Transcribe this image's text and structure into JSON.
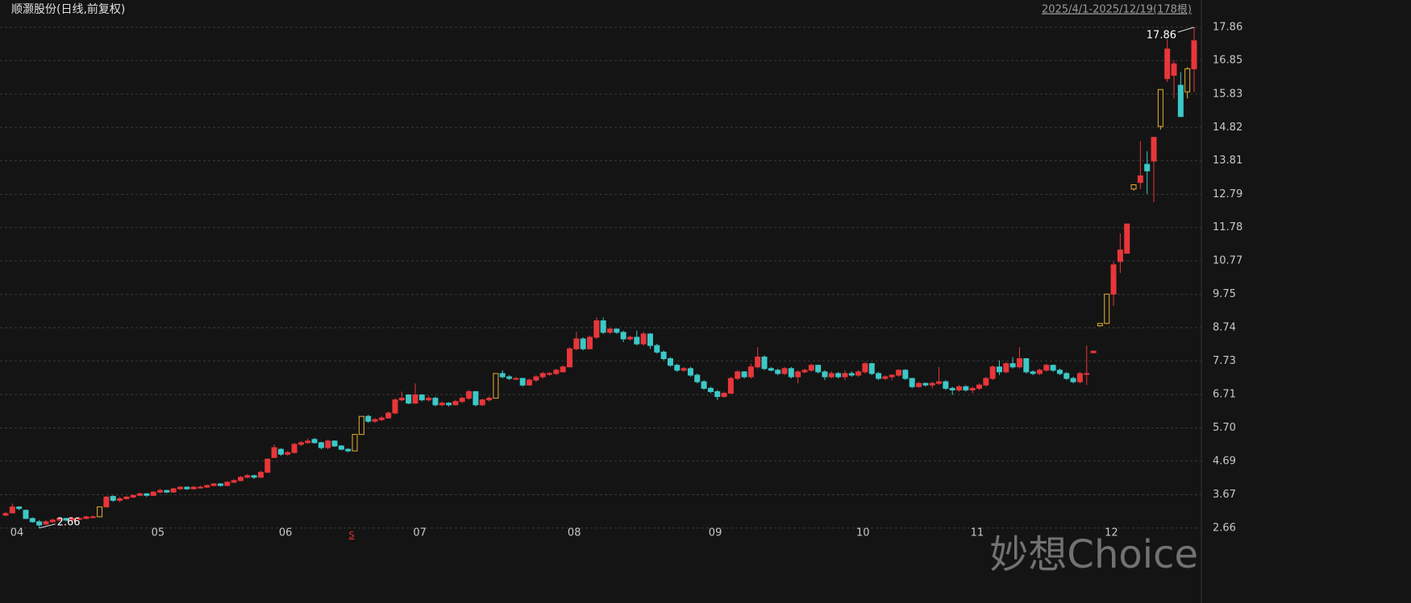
{
  "chart_data": {
    "type": "candlestick",
    "title": "顺灏股份(日线,前复权)",
    "range_label": "2025/4/1-2025/12/19(178根)",
    "watermark": "妙想Choice",
    "event_marker": "S",
    "event_index": 52,
    "up_color": "#e8363a",
    "down_color": "#3cc8c8",
    "limit_color": "#e8b030",
    "grid": true,
    "ylim": [
      2.29,
      18.15
    ],
    "yticks": [
      17.86,
      16.85,
      15.83,
      14.82,
      13.81,
      12.79,
      11.78,
      10.77,
      9.75,
      8.74,
      7.73,
      6.71,
      {
        "value": 5.7,
        "label": "5.70"
      },
      4.69,
      3.67,
      2.66
    ],
    "categories": [
      "04",
      null,
      null,
      null,
      null,
      null,
      null,
      null,
      null,
      null,
      null,
      null,
      null,
      null,
      null,
      null,
      null,
      null,
      null,
      null,
      null,
      "05",
      null,
      null,
      null,
      null,
      null,
      null,
      null,
      null,
      null,
      null,
      null,
      null,
      null,
      null,
      null,
      null,
      null,
      null,
      "06",
      null,
      null,
      null,
      null,
      null,
      null,
      null,
      null,
      null,
      null,
      null,
      null,
      null,
      null,
      null,
      null,
      null,
      null,
      null,
      "07",
      null,
      null,
      null,
      null,
      null,
      null,
      null,
      null,
      null,
      null,
      null,
      null,
      null,
      null,
      null,
      null,
      null,
      null,
      null,
      null,
      null,
      null,
      "08",
      null,
      null,
      null,
      null,
      null,
      null,
      null,
      null,
      null,
      null,
      null,
      null,
      null,
      null,
      null,
      null,
      null,
      null,
      null,
      null,
      "09",
      null,
      null,
      null,
      null,
      null,
      null,
      null,
      null,
      null,
      null,
      null,
      null,
      null,
      null,
      null,
      null,
      null,
      null,
      null,
      null,
      null,
      "10",
      null,
      null,
      null,
      null,
      null,
      null,
      null,
      null,
      null,
      null,
      null,
      null,
      null,
      null,
      null,
      null,
      "11",
      null,
      null,
      null,
      null,
      null,
      null,
      null,
      null,
      null,
      null,
      null,
      null,
      null,
      null,
      null,
      null,
      null,
      null,
      null,
      "12",
      null,
      null,
      null,
      null,
      null,
      null,
      null,
      null,
      null,
      null,
      null,
      null,
      null,
      null
    ],
    "candles": [
      [
        3.05,
        3.15,
        3.02,
        3.1
      ],
      [
        3.12,
        3.4,
        3.1,
        3.3
      ],
      [
        3.3,
        3.32,
        3.2,
        3.25
      ],
      [
        3.2,
        3.22,
        2.93,
        2.95
      ],
      [
        2.95,
        2.98,
        2.82,
        2.85
      ],
      [
        2.85,
        2.9,
        2.66,
        2.75
      ],
      [
        2.78,
        2.9,
        2.75,
        2.85
      ],
      [
        2.85,
        2.95,
        2.82,
        2.9
      ],
      [
        2.9,
        2.98,
        2.88,
        2.95
      ],
      [
        2.95,
        2.97,
        2.86,
        2.9
      ],
      [
        2.9,
        2.99,
        2.88,
        2.95
      ],
      [
        2.95,
        2.98,
        2.9,
        2.95
      ],
      [
        2.95,
        3.03,
        2.93,
        3.0
      ],
      [
        3.0,
        3.04,
        2.96,
        3.0
      ],
      [
        3.0,
        3.3,
        3.0,
        3.3
      ],
      [
        3.3,
        3.63,
        3.3,
        3.6
      ],
      [
        3.62,
        3.65,
        3.45,
        3.5
      ],
      [
        3.5,
        3.6,
        3.45,
        3.55
      ],
      [
        3.55,
        3.63,
        3.52,
        3.6
      ],
      [
        3.6,
        3.68,
        3.56,
        3.65
      ],
      [
        3.65,
        3.74,
        3.62,
        3.7
      ],
      [
        3.7,
        3.72,
        3.6,
        3.65
      ],
      [
        3.65,
        3.78,
        3.63,
        3.75
      ],
      [
        3.75,
        3.85,
        3.72,
        3.8
      ],
      [
        3.8,
        3.82,
        3.72,
        3.75
      ],
      [
        3.75,
        3.88,
        3.73,
        3.85
      ],
      [
        3.85,
        3.93,
        3.82,
        3.9
      ],
      [
        3.9,
        3.92,
        3.82,
        3.85
      ],
      [
        3.85,
        3.94,
        3.83,
        3.9
      ],
      [
        3.9,
        3.95,
        3.86,
        3.9
      ],
      [
        3.9,
        3.98,
        3.88,
        3.95
      ],
      [
        3.95,
        4.03,
        3.92,
        4.0
      ],
      [
        4.0,
        4.02,
        3.92,
        3.95
      ],
      [
        3.95,
        4.08,
        3.93,
        4.05
      ],
      [
        4.05,
        4.14,
        4.02,
        4.1
      ],
      [
        4.1,
        4.24,
        4.08,
        4.2
      ],
      [
        4.2,
        4.3,
        4.17,
        4.25
      ],
      [
        4.25,
        4.28,
        4.15,
        4.2
      ],
      [
        4.2,
        4.4,
        4.18,
        4.35
      ],
      [
        4.35,
        4.78,
        4.35,
        4.75
      ],
      [
        4.8,
        5.2,
        4.78,
        5.1
      ],
      [
        5.05,
        5.08,
        4.85,
        4.9
      ],
      [
        4.9,
        5.0,
        4.85,
        4.95
      ],
      [
        4.95,
        5.25,
        4.92,
        5.2
      ],
      [
        5.2,
        5.3,
        5.15,
        5.25
      ],
      [
        5.25,
        5.38,
        5.22,
        5.3
      ],
      [
        5.35,
        5.4,
        5.22,
        5.25
      ],
      [
        5.25,
        5.28,
        5.05,
        5.1
      ],
      [
        5.1,
        5.35,
        5.05,
        5.3
      ],
      [
        5.3,
        5.32,
        5.12,
        5.15
      ],
      [
        5.15,
        5.18,
        5.02,
        5.05
      ],
      [
        5.05,
        5.08,
        4.96,
        5.0
      ],
      [
        5.0,
        5.5,
        5.0,
        5.5
      ],
      [
        5.5,
        6.05,
        5.5,
        6.05
      ],
      [
        6.05,
        6.1,
        5.85,
        5.9
      ],
      [
        5.9,
        6.0,
        5.85,
        5.95
      ],
      [
        5.95,
        6.05,
        5.9,
        6.0
      ],
      [
        6.0,
        6.2,
        5.98,
        6.15
      ],
      [
        6.15,
        6.6,
        6.12,
        6.55
      ],
      [
        6.55,
        6.8,
        6.5,
        6.6
      ],
      [
        6.7,
        6.72,
        6.42,
        6.45
      ],
      [
        6.45,
        7.05,
        6.43,
        6.7
      ],
      [
        6.7,
        6.72,
        6.5,
        6.55
      ],
      [
        6.55,
        6.68,
        6.5,
        6.6
      ],
      [
        6.6,
        6.65,
        6.35,
        6.4
      ],
      [
        6.4,
        6.5,
        6.35,
        6.45
      ],
      [
        6.45,
        6.48,
        6.35,
        6.4
      ],
      [
        6.4,
        6.55,
        6.38,
        6.5
      ],
      [
        6.5,
        6.65,
        6.45,
        6.6
      ],
      [
        6.6,
        6.85,
        6.55,
        6.8
      ],
      [
        6.8,
        6.82,
        6.35,
        6.4
      ],
      [
        6.4,
        6.58,
        6.36,
        6.55
      ],
      [
        6.55,
        6.65,
        6.5,
        6.6
      ],
      [
        6.6,
        7.35,
        6.6,
        7.35
      ],
      [
        7.35,
        7.45,
        7.2,
        7.25
      ],
      [
        7.25,
        7.3,
        7.15,
        7.2
      ],
      [
        7.2,
        7.25,
        7.15,
        7.2
      ],
      [
        7.2,
        7.22,
        6.95,
        7.0
      ],
      [
        7.0,
        7.2,
        6.98,
        7.15
      ],
      [
        7.15,
        7.3,
        7.1,
        7.25
      ],
      [
        7.25,
        7.4,
        7.2,
        7.35
      ],
      [
        7.35,
        7.4,
        7.28,
        7.35
      ],
      [
        7.35,
        7.5,
        7.3,
        7.45
      ],
      [
        7.4,
        7.6,
        7.38,
        7.55
      ],
      [
        7.55,
        8.15,
        7.55,
        8.1
      ],
      [
        8.1,
        8.62,
        8.05,
        8.4
      ],
      [
        8.4,
        8.45,
        8.05,
        8.1
      ],
      [
        8.1,
        8.5,
        8.08,
        8.45
      ],
      [
        8.45,
        9.05,
        8.4,
        8.95
      ],
      [
        8.95,
        9.05,
        8.55,
        8.6
      ],
      [
        8.6,
        8.75,
        8.55,
        8.7
      ],
      [
        8.7,
        8.72,
        8.55,
        8.6
      ],
      [
        8.6,
        8.65,
        8.3,
        8.4
      ],
      [
        8.4,
        8.5,
        8.35,
        8.45
      ],
      [
        8.45,
        8.65,
        8.2,
        8.25
      ],
      [
        8.25,
        8.62,
        8.2,
        8.55
      ],
      [
        8.55,
        8.58,
        8.1,
        8.2
      ],
      [
        8.2,
        8.25,
        7.95,
        8.0
      ],
      [
        8.0,
        8.05,
        7.75,
        7.8
      ],
      [
        7.8,
        7.85,
        7.55,
        7.6
      ],
      [
        7.6,
        7.65,
        7.4,
        7.45
      ],
      [
        7.45,
        7.55,
        7.4,
        7.5
      ],
      [
        7.5,
        7.55,
        7.25,
        7.3
      ],
      [
        7.3,
        7.35,
        7.05,
        7.1
      ],
      [
        7.1,
        7.15,
        6.85,
        6.9
      ],
      [
        6.9,
        6.95,
        6.75,
        6.8
      ],
      [
        6.8,
        6.85,
        6.55,
        6.65
      ],
      [
        6.65,
        6.8,
        6.62,
        6.75
      ],
      [
        6.75,
        7.25,
        6.75,
        7.2
      ],
      [
        7.2,
        7.45,
        7.15,
        7.4
      ],
      [
        7.4,
        7.42,
        7.2,
        7.25
      ],
      [
        7.25,
        7.65,
        7.2,
        7.55
      ],
      [
        7.55,
        8.15,
        7.5,
        7.85
      ],
      [
        7.85,
        7.9,
        7.45,
        7.5
      ],
      [
        7.5,
        7.55,
        7.42,
        7.45
      ],
      [
        7.45,
        7.5,
        7.3,
        7.35
      ],
      [
        7.35,
        7.55,
        7.3,
        7.5
      ],
      [
        7.5,
        7.55,
        7.2,
        7.25
      ],
      [
        7.25,
        7.45,
        7.05,
        7.4
      ],
      [
        7.4,
        7.5,
        7.35,
        7.45
      ],
      [
        7.45,
        7.65,
        7.4,
        7.6
      ],
      [
        7.6,
        7.62,
        7.35,
        7.4
      ],
      [
        7.4,
        7.45,
        7.15,
        7.25
      ],
      [
        7.25,
        7.42,
        7.2,
        7.35
      ],
      [
        7.35,
        7.4,
        7.2,
        7.25
      ],
      [
        7.25,
        7.45,
        7.15,
        7.35
      ],
      [
        7.35,
        7.42,
        7.25,
        7.3
      ],
      [
        7.3,
        7.45,
        7.25,
        7.4
      ],
      [
        7.4,
        7.7,
        7.35,
        7.65
      ],
      [
        7.65,
        7.68,
        7.3,
        7.35
      ],
      [
        7.35,
        7.4,
        7.15,
        7.2
      ],
      [
        7.2,
        7.3,
        7.15,
        7.25
      ],
      [
        7.25,
        7.32,
        7.15,
        7.3
      ],
      [
        7.3,
        7.48,
        7.25,
        7.45
      ],
      [
        7.45,
        7.48,
        7.15,
        7.2
      ],
      [
        7.2,
        7.22,
        6.9,
        6.95
      ],
      [
        6.95,
        7.1,
        6.92,
        7.05
      ],
      [
        7.05,
        7.08,
        6.95,
        7.0
      ],
      [
        7.0,
        7.1,
        6.9,
        7.05
      ],
      [
        7.05,
        7.55,
        7.0,
        7.1
      ],
      [
        7.1,
        7.15,
        6.85,
        6.9
      ],
      [
        6.9,
        6.95,
        6.7,
        6.85
      ],
      [
        6.85,
        7.0,
        6.8,
        6.95
      ],
      [
        6.95,
        7.0,
        6.8,
        6.85
      ],
      [
        6.85,
        6.95,
        6.75,
        6.9
      ],
      [
        6.9,
        7.05,
        6.85,
        7.0
      ],
      [
        7.0,
        7.25,
        6.95,
        7.2
      ],
      [
        7.2,
        7.6,
        7.15,
        7.55
      ],
      [
        7.55,
        7.75,
        7.3,
        7.4
      ],
      [
        7.4,
        7.7,
        7.35,
        7.65
      ],
      [
        7.65,
        7.85,
        7.5,
        7.55
      ],
      [
        7.55,
        8.15,
        7.5,
        7.8
      ],
      [
        7.8,
        7.82,
        7.35,
        7.4
      ],
      [
        7.4,
        7.45,
        7.3,
        7.35
      ],
      [
        7.35,
        7.5,
        7.3,
        7.45
      ],
      [
        7.45,
        7.65,
        7.4,
        7.6
      ],
      [
        7.6,
        7.62,
        7.4,
        7.45
      ],
      [
        7.45,
        7.5,
        7.3,
        7.35
      ],
      [
        7.35,
        7.4,
        7.15,
        7.2
      ],
      [
        7.2,
        7.25,
        7.05,
        7.1
      ],
      [
        7.1,
        7.4,
        7.05,
        7.35
      ],
      [
        7.35,
        8.2,
        7.0,
        7.35
      ],
      [
        7.98,
        8.03,
        7.98,
        8.03
      ],
      [
        8.8,
        8.87,
        8.78,
        8.87
      ],
      [
        8.87,
        9.76,
        8.85,
        9.76
      ],
      [
        9.76,
        10.74,
        9.4,
        10.65
      ],
      [
        10.75,
        11.6,
        10.4,
        11.1
      ],
      [
        11.0,
        11.89,
        11.0,
        11.89
      ],
      [
        12.95,
        13.08,
        12.9,
        13.08
      ],
      [
        13.15,
        14.4,
        12.95,
        13.35
      ],
      [
        13.7,
        14.1,
        12.8,
        13.5
      ],
      [
        13.8,
        14.52,
        12.55,
        14.52
      ],
      [
        14.85,
        15.97,
        14.75,
        15.97
      ],
      [
        16.3,
        17.5,
        16.2,
        17.2
      ],
      [
        16.4,
        16.85,
        15.7,
        16.75
      ],
      [
        16.1,
        16.5,
        15.15,
        15.15
      ],
      [
        15.9,
        16.65,
        15.7,
        16.6
      ],
      [
        16.6,
        17.86,
        15.9,
        17.45
      ]
    ]
  }
}
